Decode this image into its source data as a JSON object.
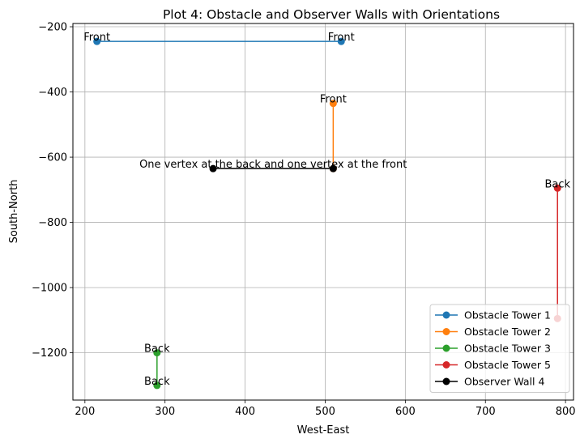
{
  "chart_data": {
    "type": "line",
    "title": "Plot 4: Obstacle and Observer Walls with Orientations",
    "xlabel": "West-East",
    "ylabel": "South-North",
    "xlim": [
      185,
      810
    ],
    "ylim": [
      -1345,
      -190
    ],
    "xticks": [
      200,
      300,
      400,
      500,
      600,
      700,
      800
    ],
    "yticks": [
      -200,
      -400,
      -600,
      -800,
      -1000,
      -1200
    ],
    "grid": true,
    "legend_position": "lower-right",
    "series": [
      {
        "name": "Obstacle Tower 1",
        "color": "#1f77b4",
        "x": [
          215,
          520
        ],
        "y": [
          -245,
          -245
        ]
      },
      {
        "name": "Obstacle Tower 2",
        "color": "#ff7f0e",
        "x": [
          510,
          510
        ],
        "y": [
          -635,
          -435
        ]
      },
      {
        "name": "Obstacle Tower 3",
        "color": "#2ca02c",
        "x": [
          290,
          290
        ],
        "y": [
          -1200,
          -1300
        ]
      },
      {
        "name": "Obstacle Tower 5",
        "color": "#d62728",
        "x": [
          790,
          790
        ],
        "y": [
          -695,
          -1095
        ]
      },
      {
        "name": "Observer Wall 4",
        "color": "#000000",
        "x": [
          360,
          510
        ],
        "y": [
          -635,
          -635
        ]
      }
    ],
    "annotations": [
      {
        "text": "Front",
        "x": 215,
        "y": -245
      },
      {
        "text": "Front",
        "x": 520,
        "y": -245
      },
      {
        "text": "Front",
        "x": 510,
        "y": -435
      },
      {
        "text": "One vertex at the back and one vertex at the front",
        "x": 435,
        "y": -635
      },
      {
        "text": "Back",
        "x": 790,
        "y": -695
      },
      {
        "text": "Back",
        "x": 290,
        "y": -1200
      },
      {
        "text": "Back",
        "x": 290,
        "y": -1300
      }
    ]
  }
}
